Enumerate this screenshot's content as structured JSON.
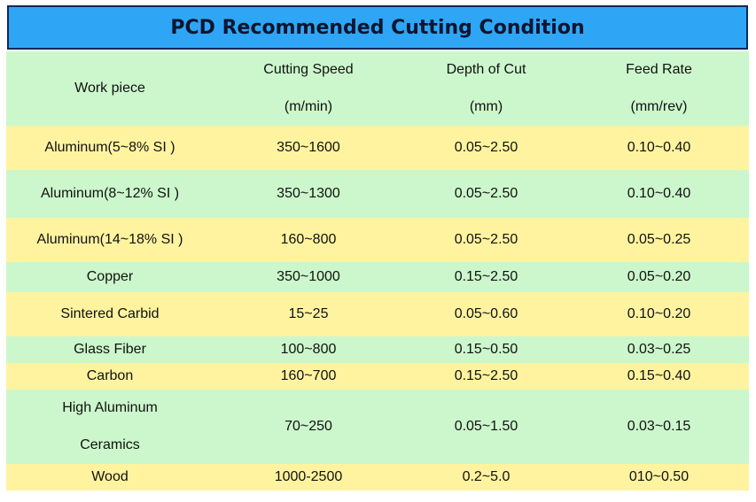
{
  "title": "PCD Recommended Cutting Condition",
  "header": {
    "workpiece": "Work piece",
    "speed_label": "Cutting Speed",
    "speed_unit": "(m/min)",
    "depth_label": "Depth of Cut",
    "depth_unit": "(mm)",
    "feed_label": "Feed Rate",
    "feed_unit": "(mm/rev)"
  },
  "rows": [
    {
      "material": "Aluminum(5~8% SI )",
      "speed": "350~1600",
      "depth": "0.05~2.50",
      "feed": "0.10~0.40"
    },
    {
      "material": "Aluminum(8~12% SI )",
      "speed": "350~1300",
      "depth": "0.05~2.50",
      "feed": "0.10~0.40"
    },
    {
      "material": "Aluminum(14~18% SI )",
      "speed": "160~800",
      "depth": "0.05~2.50",
      "feed": "0.05~0.25"
    },
    {
      "material": "Copper",
      "speed": "350~1000",
      "depth": "0.15~2.50",
      "feed": "0.05~0.20"
    },
    {
      "material": "Sintered Carbid",
      "speed": "15~25",
      "depth": "0.05~0.60",
      "feed": "0.10~0.20"
    },
    {
      "material": "Glass Fiber",
      "speed": "100~800",
      "depth": "0.15~0.50",
      "feed": "0.03~0.25"
    },
    {
      "material": "Carbon",
      "speed": "160~700",
      "depth": "0.15~2.50",
      "feed": "0.15~0.40"
    },
    {
      "material_line1": "High Aluminum",
      "material_line2": "Ceramics",
      "speed": "70~250",
      "depth": "0.05~1.50",
      "feed": "0.03~0.15"
    },
    {
      "material": "Wood",
      "speed": "1000-2500",
      "depth": "0.2~5.0",
      "feed": "010~0.50"
    }
  ],
  "colors": {
    "title_bg": "#2ea6f5",
    "title_border": "#0a2a55",
    "row_green": "#ccf7cc",
    "row_yellow": "#fff3a0"
  }
}
